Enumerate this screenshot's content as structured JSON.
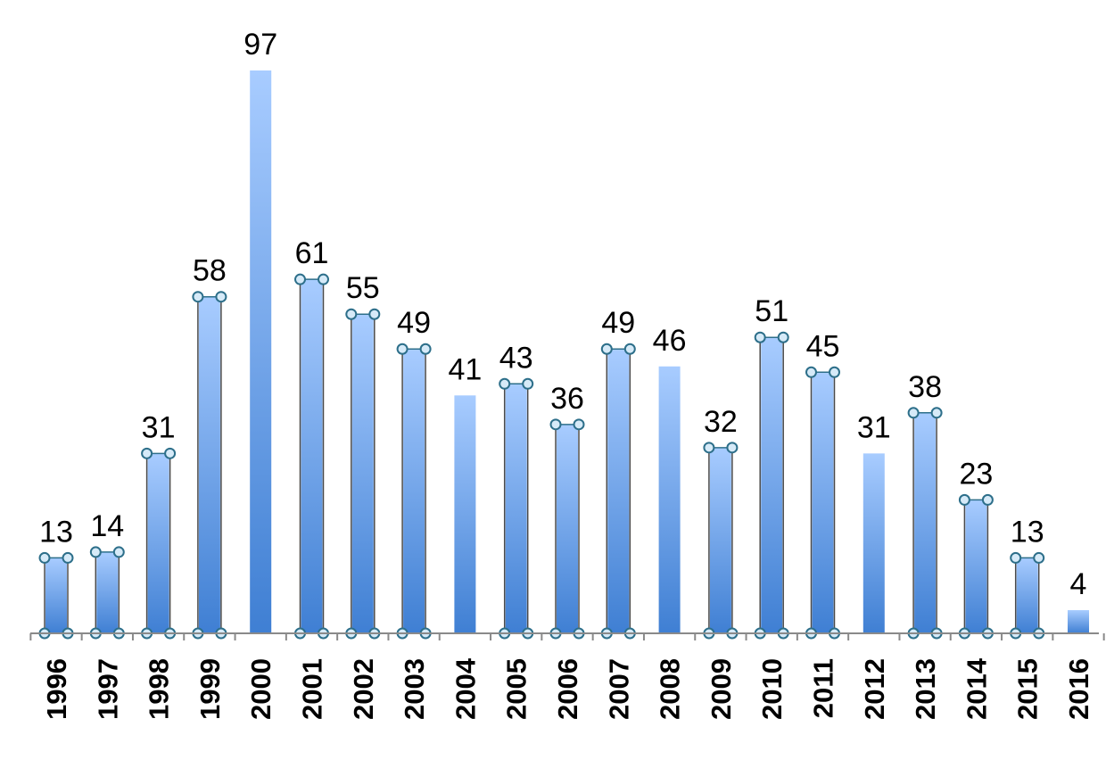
{
  "chart_data": {
    "type": "bar",
    "title": "",
    "xlabel": "",
    "ylabel": "",
    "categories": [
      "1996",
      "1997",
      "1998",
      "1999",
      "2000",
      "2001",
      "2002",
      "2003",
      "2004",
      "2005",
      "2006",
      "2007",
      "2008",
      "2009",
      "2010",
      "2011",
      "2012",
      "2013",
      "2014",
      "2015",
      "2016"
    ],
    "values": [
      13,
      14,
      31,
      58,
      97,
      61,
      55,
      49,
      41,
      43,
      36,
      49,
      46,
      32,
      51,
      45,
      31,
      38,
      23,
      13,
      4
    ],
    "selected": [
      true,
      true,
      true,
      true,
      false,
      true,
      true,
      true,
      false,
      true,
      true,
      true,
      false,
      true,
      true,
      true,
      false,
      true,
      true,
      true,
      false
    ],
    "ylim": [
      0,
      97
    ],
    "grid": false,
    "legend": "none",
    "data_labels": true,
    "colors": {
      "bar_top": "#a8ccff",
      "bar_bottom": "#3f7fd3",
      "axis": "#8a8a8a",
      "handle_fill": "#d6eaf8",
      "handle_stroke": "#2d6f8a",
      "selection_line": "#4a4a4a"
    }
  }
}
